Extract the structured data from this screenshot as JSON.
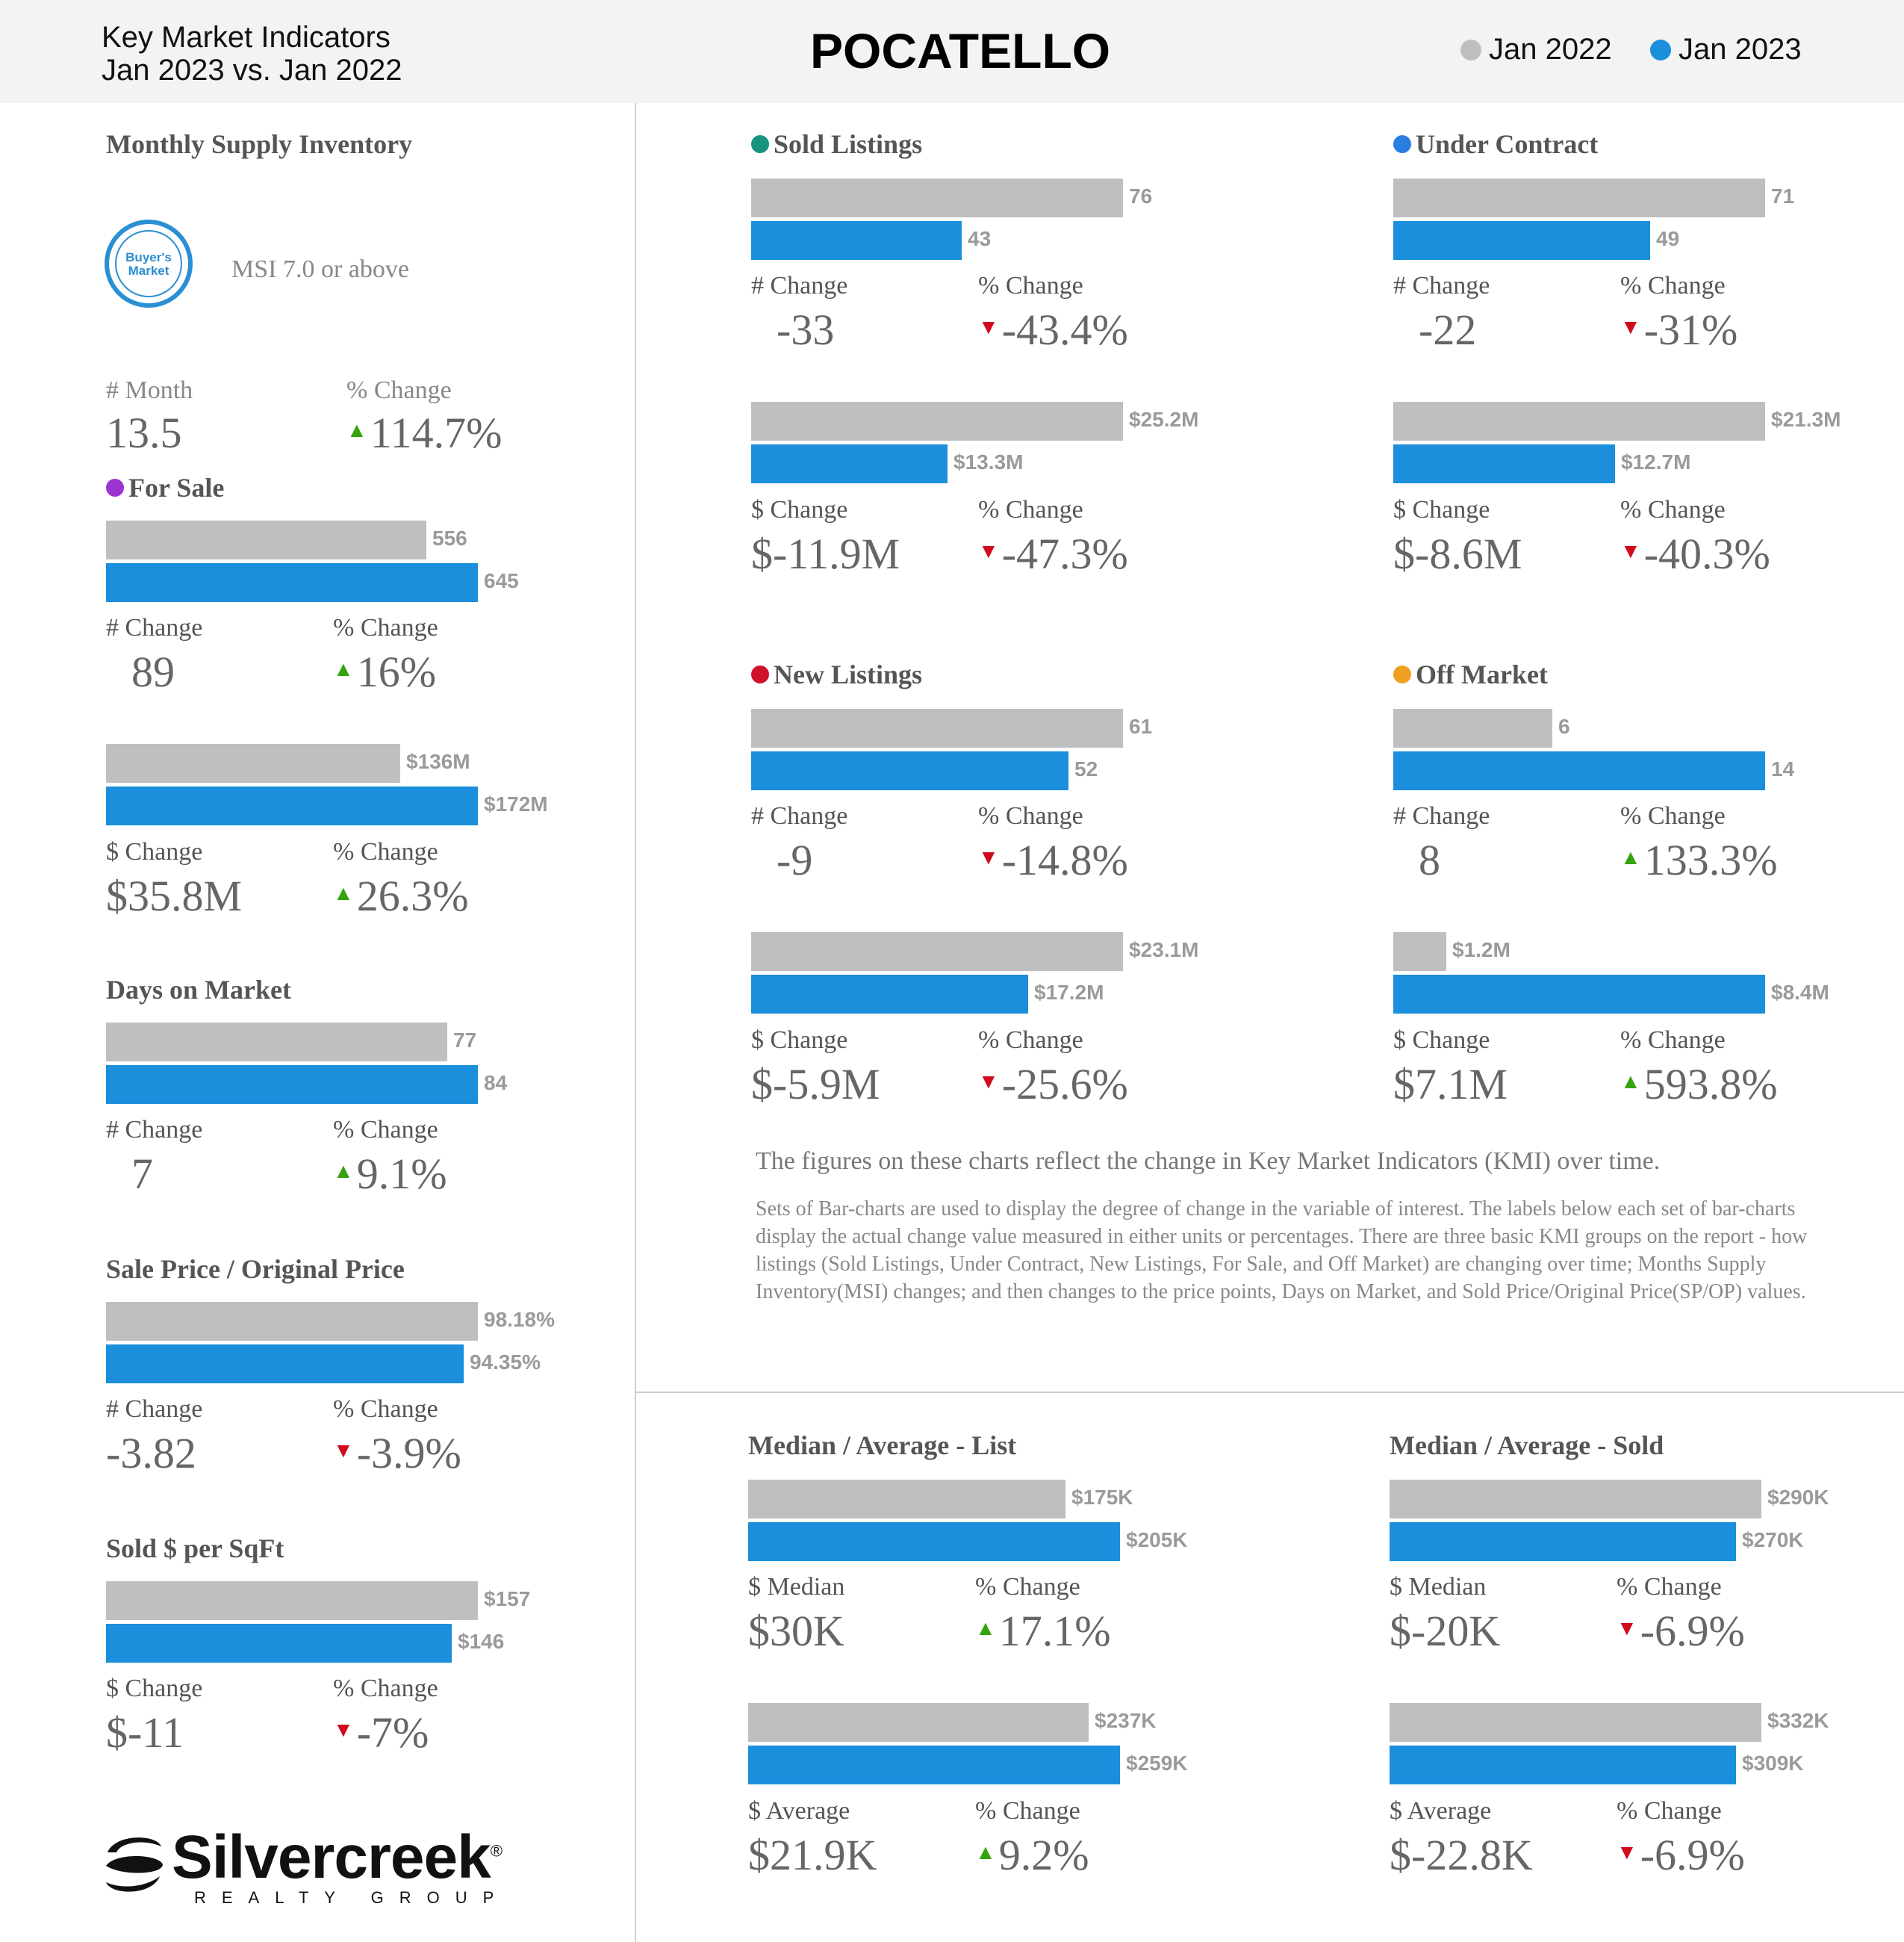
{
  "header": {
    "title_line1": "Key Market Indicators",
    "title_line2": "Jan 2023 vs. Jan 2022",
    "city": "POCATELLO",
    "legend": [
      {
        "label": "Jan 2022",
        "color": "#bfbfbf"
      },
      {
        "label": "Jan 2023",
        "color": "#1b8fdb"
      }
    ]
  },
  "msi": {
    "title": "Monthly Supply Inventory",
    "badge_line1": "Buyer's",
    "badge_line2": "Market",
    "badge_text": "MSI 7.0 or above",
    "left_label": "# Month",
    "left_value": "13.5",
    "right_label": "% Change",
    "right_value": "114.7%",
    "direction": "up"
  },
  "chart_data": [
    {
      "id": "for-sale-count",
      "type": "bar",
      "title": "For Sale",
      "title_dot": "#9b34d0",
      "categories": [
        "Jan 2022",
        "Jan 2023"
      ],
      "values": [
        556,
        645
      ],
      "labels": [
        "556",
        "645"
      ],
      "xlim": [
        0,
        645
      ],
      "left_label": "# Change",
      "left_value": "89",
      "right_label": "% Change",
      "right_value": "16%",
      "direction": "up"
    },
    {
      "id": "for-sale-dollar",
      "type": "bar",
      "title": "",
      "categories": [
        "Jan 2022",
        "Jan 2023"
      ],
      "values": [
        136,
        172
      ],
      "labels": [
        "$136M",
        "$172M"
      ],
      "unit": "$M",
      "xlim": [
        0,
        172
      ],
      "left_label": "$ Change",
      "left_value": "$35.8M",
      "right_label": "% Change",
      "right_value": "26.3%",
      "direction": "up"
    },
    {
      "id": "days-on-market",
      "type": "bar",
      "title": "Days on Market",
      "categories": [
        "Jan 2022",
        "Jan 2023"
      ],
      "values": [
        77,
        84
      ],
      "labels": [
        "77",
        "84"
      ],
      "xlim": [
        0,
        84
      ],
      "left_label": "# Change",
      "left_value": "7",
      "right_label": "% Change",
      "right_value": "9.1%",
      "direction": "up"
    },
    {
      "id": "sp-op",
      "type": "bar",
      "title": "Sale Price / Original Price",
      "categories": [
        "Jan 2022",
        "Jan 2023"
      ],
      "values": [
        98.18,
        94.35
      ],
      "labels": [
        "98.18%",
        "94.35%"
      ],
      "xlim": [
        0,
        98.18
      ],
      "left_label": "# Change",
      "left_value": "-3.82",
      "right_label": "% Change",
      "right_value": "-3.9%",
      "direction": "down"
    },
    {
      "id": "sqft",
      "type": "bar",
      "title": "Sold $ per SqFt",
      "categories": [
        "Jan 2022",
        "Jan 2023"
      ],
      "values": [
        157,
        146
      ],
      "labels": [
        "$157",
        "$146"
      ],
      "xlim": [
        0,
        157
      ],
      "left_label": "$ Change",
      "left_value": "$-11",
      "right_label": "% Change",
      "right_value": "-7%",
      "direction": "down"
    },
    {
      "id": "sold-count",
      "type": "bar",
      "title": "Sold Listings",
      "title_dot": "#17947e",
      "categories": [
        "Jan 2022",
        "Jan 2023"
      ],
      "values": [
        76,
        43
      ],
      "labels": [
        "76",
        "43"
      ],
      "xlim": [
        0,
        76
      ],
      "left_label": "# Change",
      "left_value": "-33",
      "right_label": "% Change",
      "right_value": "-43.4%",
      "direction": "down"
    },
    {
      "id": "sold-dollar",
      "type": "bar",
      "title": "",
      "categories": [
        "Jan 2022",
        "Jan 2023"
      ],
      "values": [
        25.2,
        13.3
      ],
      "labels": [
        "$25.2M",
        "$13.3M"
      ],
      "unit": "$M",
      "xlim": [
        0,
        25.2
      ],
      "left_label": "$ Change",
      "left_value": "$-11.9M",
      "right_label": "% Change",
      "right_value": "-47.3%",
      "direction": "down"
    },
    {
      "id": "uc-count",
      "type": "bar",
      "title": "Under Contract",
      "title_dot": "#2a7de1",
      "categories": [
        "Jan 2022",
        "Jan 2023"
      ],
      "values": [
        71,
        49
      ],
      "labels": [
        "71",
        "49"
      ],
      "xlim": [
        0,
        71
      ],
      "left_label": "# Change",
      "left_value": "-22",
      "right_label": "% Change",
      "right_value": "-31%",
      "direction": "down"
    },
    {
      "id": "uc-dollar",
      "type": "bar",
      "title": "",
      "categories": [
        "Jan 2022",
        "Jan 2023"
      ],
      "values": [
        21.3,
        12.7
      ],
      "labels": [
        "$21.3M",
        "$12.7M"
      ],
      "unit": "$M",
      "xlim": [
        0,
        21.3
      ],
      "left_label": "$ Change",
      "left_value": "$-8.6M",
      "right_label": "% Change",
      "right_value": "-40.3%",
      "direction": "down"
    },
    {
      "id": "new-count",
      "type": "bar",
      "title": "New Listings",
      "title_dot": "#d0112b",
      "categories": [
        "Jan 2022",
        "Jan 2023"
      ],
      "values": [
        61,
        52
      ],
      "labels": [
        "61",
        "52"
      ],
      "xlim": [
        0,
        61
      ],
      "left_label": "# Change",
      "left_value": "-9",
      "right_label": "% Change",
      "right_value": "-14.8%",
      "direction": "down"
    },
    {
      "id": "new-dollar",
      "type": "bar",
      "title": "",
      "categories": [
        "Jan 2022",
        "Jan 2023"
      ],
      "values": [
        23.1,
        17.2
      ],
      "labels": [
        "$23.1M",
        "$17.2M"
      ],
      "unit": "$M",
      "xlim": [
        0,
        23.1
      ],
      "left_label": "$ Change",
      "left_value": "$-5.9M",
      "right_label": "% Change",
      "right_value": "-25.6%",
      "direction": "down"
    },
    {
      "id": "off-count",
      "type": "bar",
      "title": "Off Market",
      "title_dot": "#f0a020",
      "categories": [
        "Jan 2022",
        "Jan 2023"
      ],
      "values": [
        6,
        14
      ],
      "labels": [
        "6",
        "14"
      ],
      "xlim": [
        0,
        14
      ],
      "left_label": "# Change",
      "left_value": "8",
      "right_label": "% Change",
      "right_value": "133.3%",
      "direction": "up"
    },
    {
      "id": "off-dollar",
      "type": "bar",
      "title": "",
      "categories": [
        "Jan 2022",
        "Jan 2023"
      ],
      "values": [
        1.2,
        8.4
      ],
      "labels": [
        "$1.2M",
        "$8.4M"
      ],
      "unit": "$M",
      "xlim": [
        0,
        8.4
      ],
      "left_label": "$ Change",
      "left_value": "$7.1M",
      "right_label": "% Change",
      "right_value": "593.8%",
      "direction": "up"
    },
    {
      "id": "list-median",
      "type": "bar",
      "title": "Median / Average - List",
      "categories": [
        "Jan 2022",
        "Jan 2023"
      ],
      "values": [
        175,
        205
      ],
      "labels": [
        "$175K",
        "$205K"
      ],
      "unit": "$K",
      "xlim": [
        0,
        205
      ],
      "left_label": "$ Median",
      "left_value": "$30K",
      "right_label": "% Change",
      "right_value": "17.1%",
      "direction": "up"
    },
    {
      "id": "list-average",
      "type": "bar",
      "title": "",
      "categories": [
        "Jan 2022",
        "Jan 2023"
      ],
      "values": [
        237,
        259
      ],
      "labels": [
        "$237K",
        "$259K"
      ],
      "unit": "$K",
      "xlim": [
        0,
        259
      ],
      "left_label": "$ Average",
      "left_value": "$21.9K",
      "right_label": "% Change",
      "right_value": "9.2%",
      "direction": "up"
    },
    {
      "id": "sold-median",
      "type": "bar",
      "title": "Median / Average - Sold",
      "categories": [
        "Jan 2022",
        "Jan 2023"
      ],
      "values": [
        290,
        270
      ],
      "labels": [
        "$290K",
        "$270K"
      ],
      "unit": "$K",
      "xlim": [
        0,
        290
      ],
      "left_label": "$ Median",
      "left_value": "$-20K",
      "right_label": "% Change",
      "right_value": "-6.9%",
      "direction": "down"
    },
    {
      "id": "sold-average",
      "type": "bar",
      "title": "",
      "categories": [
        "Jan 2022",
        "Jan 2023"
      ],
      "values": [
        332,
        309
      ],
      "labels": [
        "$332K",
        "$309K"
      ],
      "unit": "$K",
      "xlim": [
        0,
        332
      ],
      "left_label": "$ Average",
      "left_value": "$-22.8K",
      "right_label": "% Change",
      "right_value": "-6.9%",
      "direction": "down"
    }
  ],
  "notes": {
    "line1": "The figures on these charts reflect the change in Key Market Indicators (KMI) over time.",
    "paragraph": "Sets of Bar-charts are used to display the degree of change in the variable of interest. The labels below each set of bar-charts display the actual change value measured in either units or percentages. There are three basic KMI groups on the report - how listings (Sold Listings, Under Contract, New Listings, For Sale, and Off Market) are changing over time; Months Supply Inventory(MSI) changes; and then changes to the price points, Days on Market, and Sold Price/Original Price(SP/OP) values."
  },
  "logo": {
    "wordmark": "Silvercreek",
    "registered": "®",
    "subtitle": "REALTY GROUP"
  }
}
